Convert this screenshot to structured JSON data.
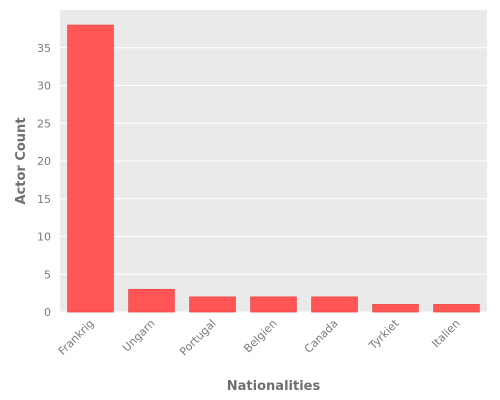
{
  "chart_data": {
    "type": "bar",
    "title": "",
    "xlabel": "Nationalities",
    "ylabel": "Actor Count",
    "categories": [
      "Frankrig",
      "Ungarn",
      "Portugal",
      "Belgien",
      "Canada",
      "Tyrkiet",
      "Italien"
    ],
    "values": [
      38,
      3,
      2,
      2,
      2,
      1,
      1
    ],
    "ylim": [
      0,
      40
    ],
    "yticks": [
      0,
      5,
      10,
      15,
      20,
      25,
      30,
      35
    ],
    "grid": true,
    "legend": "none",
    "colors": {
      "bar": "#ff5555",
      "bar_edge": "#e84a4a",
      "plot_background": "#eaeaea",
      "grid": "#ffffff"
    }
  }
}
